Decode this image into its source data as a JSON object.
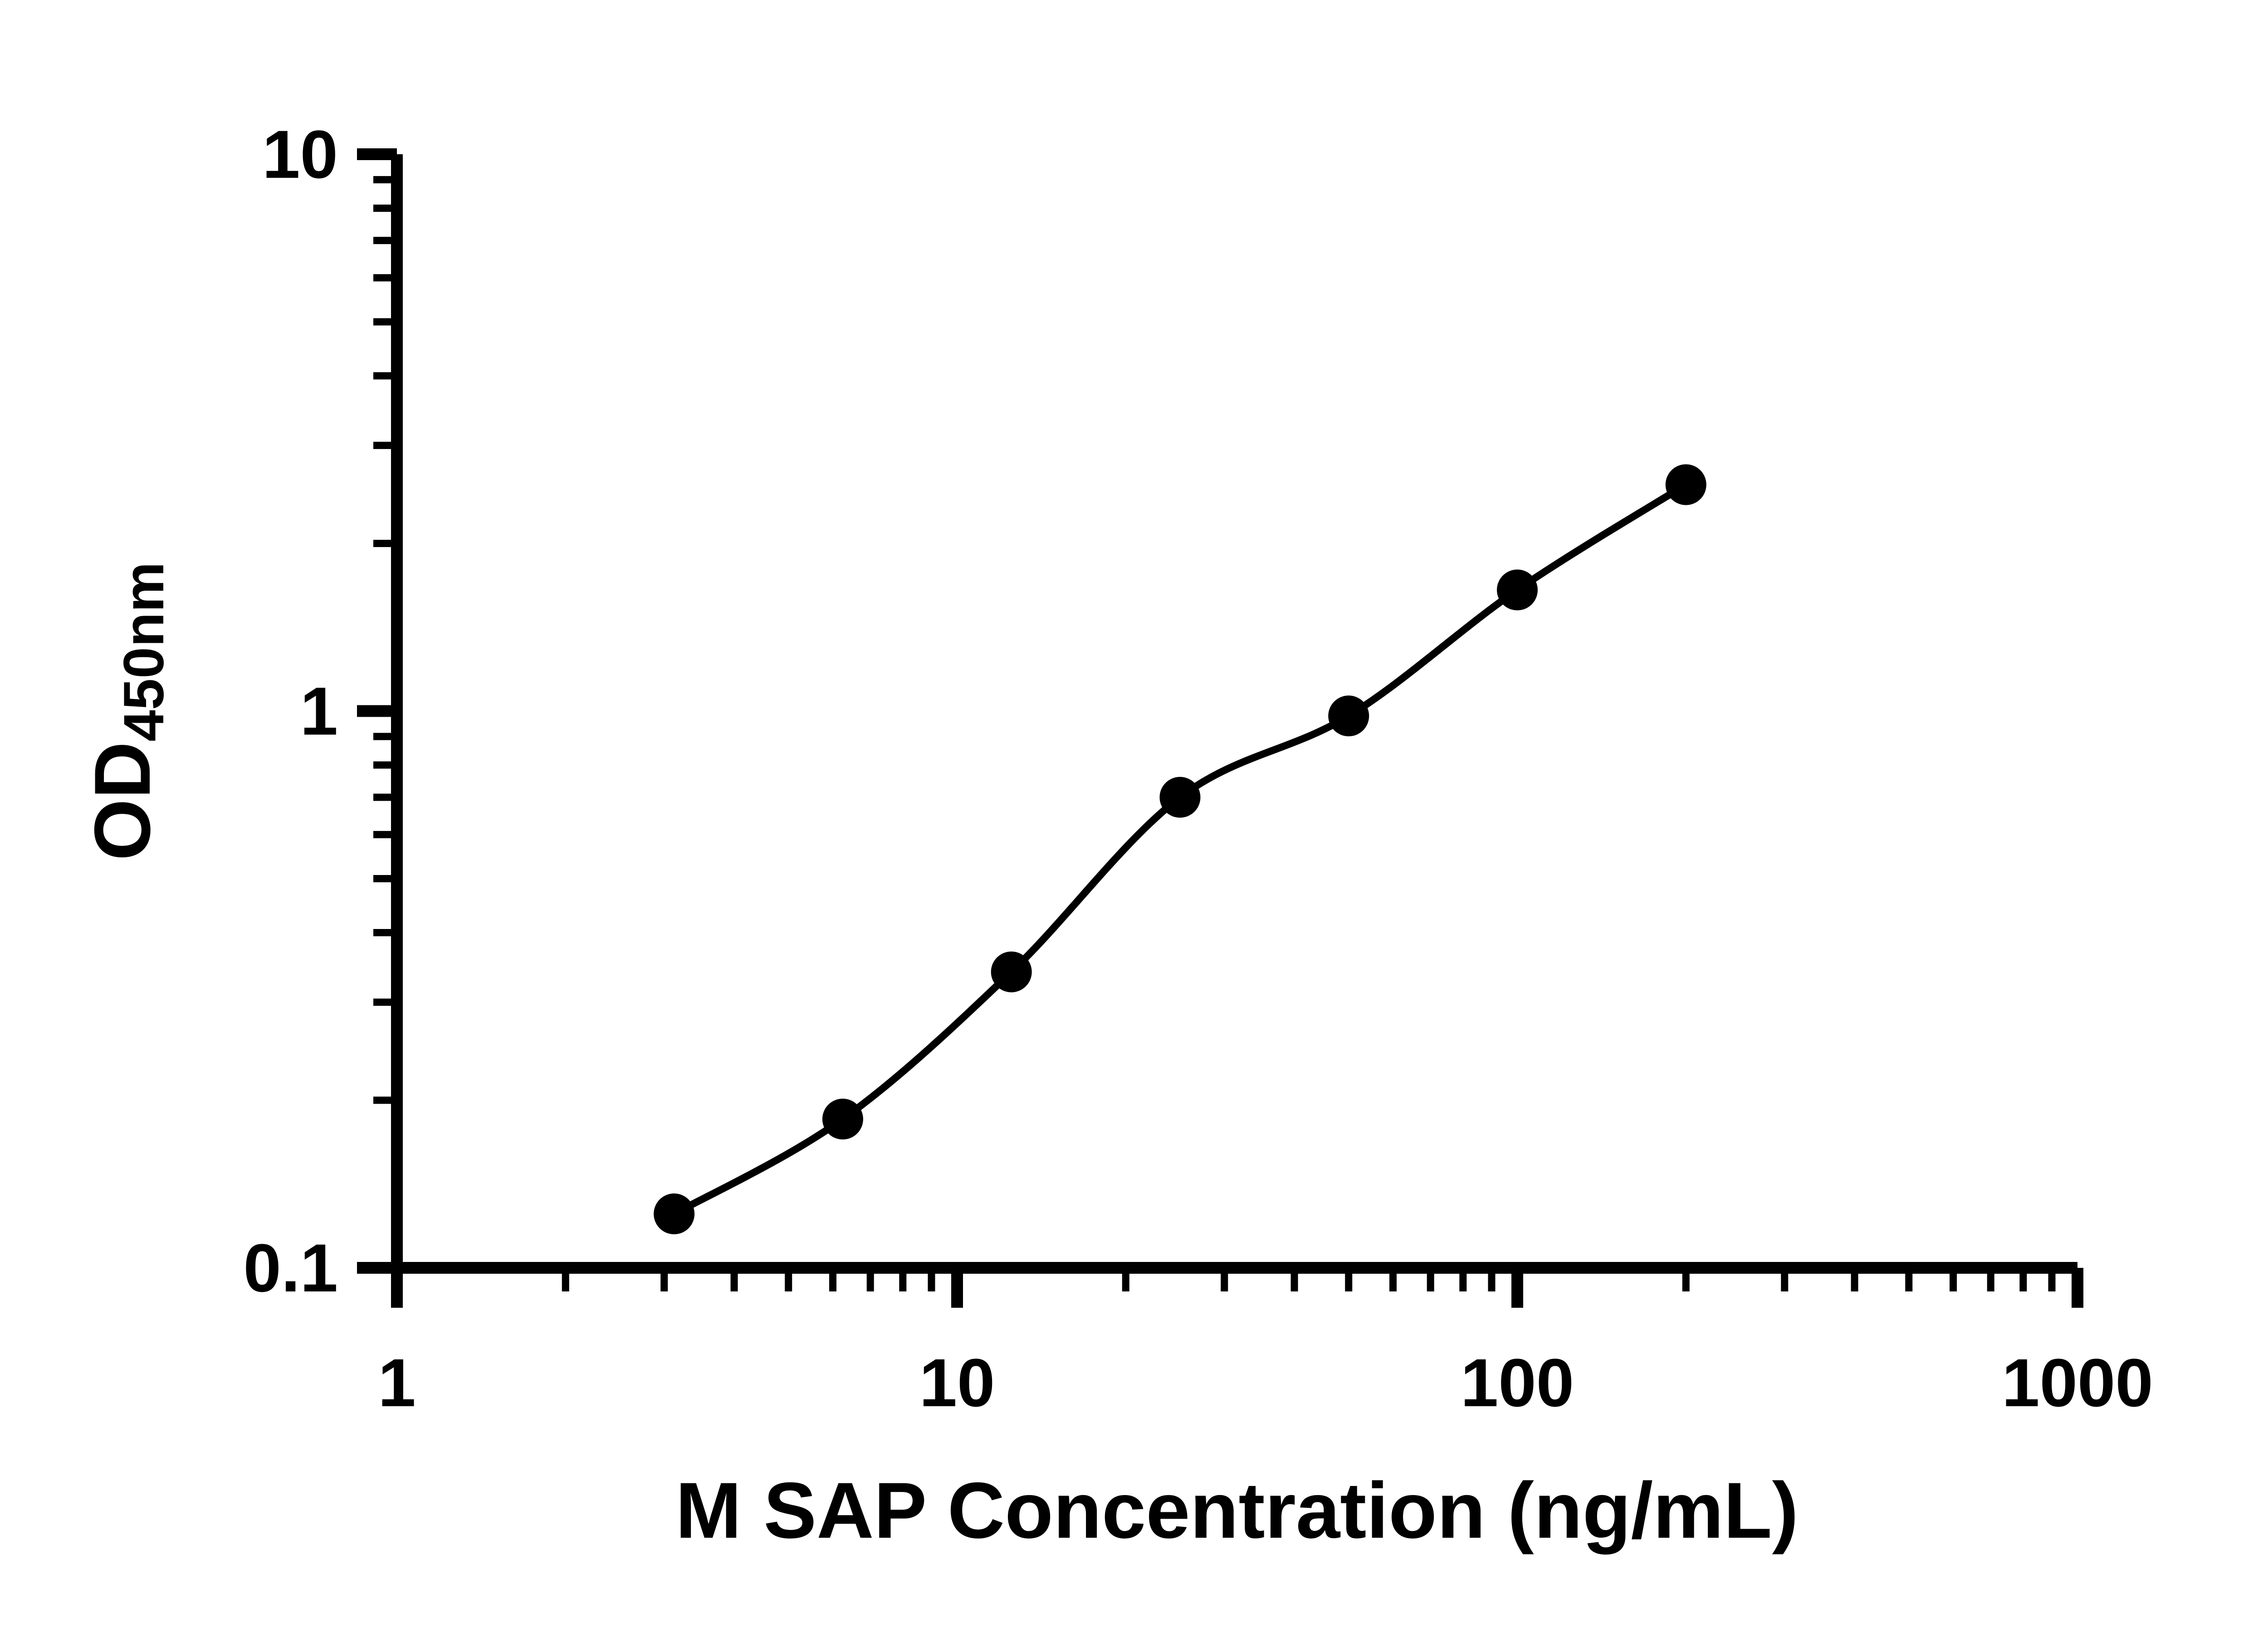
{
  "figure": {
    "background": "#ffffff"
  },
  "chart_data": {
    "type": "scatter",
    "title": "",
    "xlabel": "M SAP Concentration (ng/mL)",
    "ylabel_main": "OD",
    "ylabel_sub": "450nm",
    "x_scale": "log10",
    "y_scale": "log10",
    "xlim": [
      1,
      1000
    ],
    "ylim": [
      0.1,
      10
    ],
    "x_major_ticks": [
      1,
      10,
      100,
      1000
    ],
    "x_tick_labels": [
      "1",
      "10",
      "100",
      "1000"
    ],
    "y_major_ticks": [
      0.1,
      1,
      10
    ],
    "y_tick_labels": [
      "0.1",
      "1",
      "10"
    ],
    "grid": false,
    "legend": false,
    "colors": {
      "axis": "#000000",
      "line": "#000000",
      "marker": "#000000"
    },
    "series": [
      {
        "marker": "circle",
        "x": [
          3.125,
          6.25,
          12.5,
          25,
          50,
          100,
          200
        ],
        "y": [
          0.125,
          0.185,
          0.34,
          0.7,
          0.98,
          1.65,
          2.55
        ]
      }
    ]
  }
}
